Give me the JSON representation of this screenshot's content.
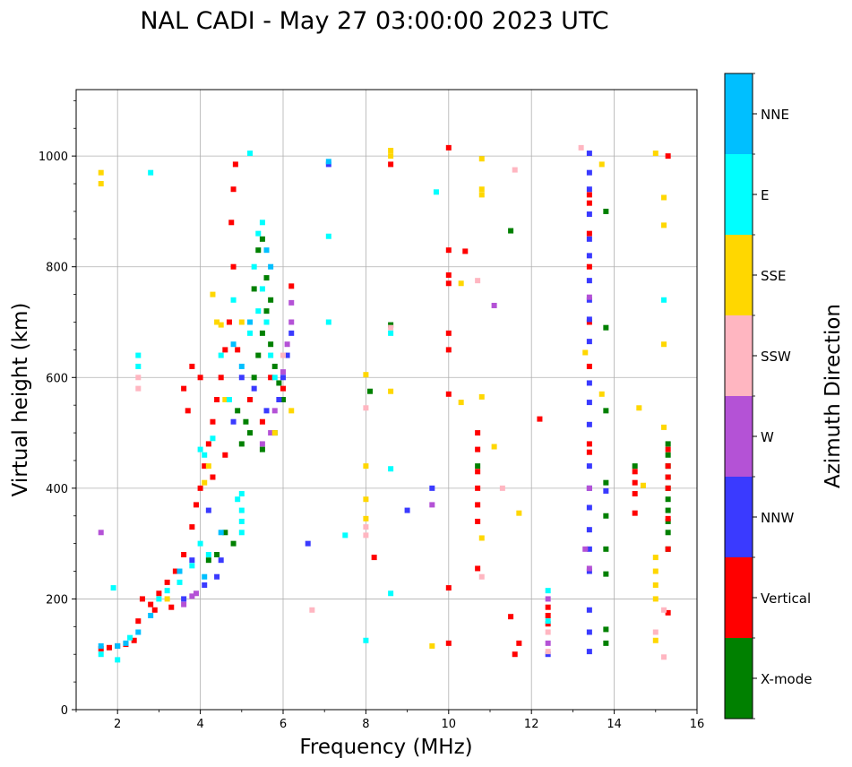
{
  "chart_data": {
    "type": "scatter",
    "title": "NAL CADI - May 27 03:00:00 2023 UTC",
    "xlabel": "Frequency (MHz)",
    "ylabel": "Virtual height (km)",
    "xlim": [
      1,
      16
    ],
    "ylim": [
      0,
      1120
    ],
    "xticks": [
      2,
      4,
      6,
      8,
      10,
      12,
      14,
      16
    ],
    "yticks": [
      0,
      200,
      400,
      600,
      800,
      1000
    ],
    "grid": true,
    "colorbar": {
      "label": "Azimuth Direction",
      "categories": [
        "X-mode",
        "Vertical",
        "NNW",
        "W",
        "SSW",
        "SSE",
        "E",
        "NNE"
      ],
      "colors": [
        "#008000",
        "#ff0000",
        "#3a3aff",
        "#b452d6",
        "#ffb6c1",
        "#ffd700",
        "#00ffff",
        "#00bfff"
      ]
    },
    "series": [
      {
        "name": "X-mode",
        "points": [
          [
            5.0,
            480
          ],
          [
            5.1,
            520
          ],
          [
            5.2,
            560
          ],
          [
            5.3,
            600
          ],
          [
            5.4,
            640
          ],
          [
            5.5,
            680
          ],
          [
            5.6,
            720
          ],
          [
            5.3,
            760
          ],
          [
            5.6,
            780
          ],
          [
            5.7,
            660
          ],
          [
            5.8,
            620
          ],
          [
            5.9,
            590
          ],
          [
            4.9,
            540
          ],
          [
            5.2,
            500
          ],
          [
            5.5,
            470
          ],
          [
            5.8,
            500
          ],
          [
            6.0,
            560
          ],
          [
            5.4,
            830
          ],
          [
            5.5,
            850
          ],
          [
            5.7,
            740
          ],
          [
            4.8,
            300
          ],
          [
            4.4,
            280
          ],
          [
            4.6,
            320
          ],
          [
            4.2,
            270
          ],
          [
            15.3,
            480
          ],
          [
            15.3,
            460
          ],
          [
            15.3,
            440
          ],
          [
            15.3,
            420
          ],
          [
            15.3,
            400
          ],
          [
            15.3,
            380
          ],
          [
            15.3,
            360
          ],
          [
            15.3,
            340
          ],
          [
            15.3,
            320
          ],
          [
            15.3,
            290
          ],
          [
            10.7,
            440
          ],
          [
            13.8,
            900
          ],
          [
            13.8,
            690
          ],
          [
            13.8,
            540
          ],
          [
            13.8,
            410
          ],
          [
            13.8,
            350
          ],
          [
            13.8,
            290
          ],
          [
            13.8,
            245
          ],
          [
            13.8,
            145
          ],
          [
            13.8,
            120
          ],
          [
            11.5,
            865
          ],
          [
            8.1,
            575
          ],
          [
            8.6,
            695
          ],
          [
            14.5,
            440
          ]
        ]
      },
      {
        "name": "Vertical",
        "points": [
          [
            1.6,
            110
          ],
          [
            1.8,
            112
          ],
          [
            2.0,
            115
          ],
          [
            2.2,
            118
          ],
          [
            2.4,
            125
          ],
          [
            2.5,
            160
          ],
          [
            2.6,
            200
          ],
          [
            2.8,
            190
          ],
          [
            3.0,
            210
          ],
          [
            3.2,
            230
          ],
          [
            3.4,
            250
          ],
          [
            3.6,
            280
          ],
          [
            3.8,
            330
          ],
          [
            3.9,
            370
          ],
          [
            4.0,
            400
          ],
          [
            4.1,
            440
          ],
          [
            4.2,
            480
          ],
          [
            4.3,
            520
          ],
          [
            4.4,
            560
          ],
          [
            4.5,
            600
          ],
          [
            4.6,
            650
          ],
          [
            4.7,
            700
          ],
          [
            4.8,
            800
          ],
          [
            4.75,
            880
          ],
          [
            4.8,
            940
          ],
          [
            4.85,
            985
          ],
          [
            4.0,
            600
          ],
          [
            3.8,
            620
          ],
          [
            3.7,
            540
          ],
          [
            3.6,
            580
          ],
          [
            4.3,
            420
          ],
          [
            4.6,
            460
          ],
          [
            4.9,
            650
          ],
          [
            5.2,
            560
          ],
          [
            5.5,
            520
          ],
          [
            5.7,
            600
          ],
          [
            6.0,
            580
          ],
          [
            6.2,
            765
          ],
          [
            2.9,
            180
          ],
          [
            3.3,
            185
          ],
          [
            10.7,
            500
          ],
          [
            10.7,
            470
          ],
          [
            10.7,
            430
          ],
          [
            10.7,
            400
          ],
          [
            10.7,
            370
          ],
          [
            10.7,
            340
          ],
          [
            10.0,
            1015
          ],
          [
            10.0,
            830
          ],
          [
            10.0,
            785
          ],
          [
            10.0,
            770
          ],
          [
            10.0,
            680
          ],
          [
            10.0,
            650
          ],
          [
            10.0,
            570
          ],
          [
            10.0,
            220
          ],
          [
            10.0,
            120
          ],
          [
            10.4,
            828
          ],
          [
            10.7,
            255
          ],
          [
            12.4,
            185
          ],
          [
            12.4,
            170
          ],
          [
            12.4,
            155
          ],
          [
            12.2,
            525
          ],
          [
            11.7,
            120
          ],
          [
            11.6,
            100
          ],
          [
            11.5,
            168
          ],
          [
            13.4,
            930
          ],
          [
            13.4,
            915
          ],
          [
            13.4,
            860
          ],
          [
            13.4,
            800
          ],
          [
            13.4,
            700
          ],
          [
            13.4,
            620
          ],
          [
            13.4,
            480
          ],
          [
            13.4,
            465
          ],
          [
            14.5,
            430
          ],
          [
            14.5,
            410
          ],
          [
            14.5,
            390
          ],
          [
            14.5,
            355
          ],
          [
            15.3,
            1000
          ],
          [
            15.3,
            175
          ],
          [
            15.3,
            470
          ],
          [
            15.3,
            440
          ],
          [
            15.3,
            420
          ],
          [
            15.3,
            400
          ],
          [
            15.3,
            345
          ],
          [
            15.3,
            290
          ],
          [
            8.6,
            985
          ],
          [
            8.2,
            275
          ]
        ]
      },
      {
        "name": "NNW",
        "points": [
          [
            4.5,
            270
          ],
          [
            4.4,
            240
          ],
          [
            4.1,
            225
          ],
          [
            3.6,
            200
          ],
          [
            3.8,
            270
          ],
          [
            4.2,
            360
          ],
          [
            4.8,
            520
          ],
          [
            5.0,
            600
          ],
          [
            5.3,
            580
          ],
          [
            5.6,
            540
          ],
          [
            5.9,
            560
          ],
          [
            6.0,
            600
          ],
          [
            6.1,
            640
          ],
          [
            6.2,
            680
          ],
          [
            6.6,
            300
          ],
          [
            9.0,
            360
          ],
          [
            9.6,
            400
          ],
          [
            13.4,
            1005
          ],
          [
            13.4,
            970
          ],
          [
            13.4,
            940
          ],
          [
            13.4,
            895
          ],
          [
            13.4,
            850
          ],
          [
            13.4,
            820
          ],
          [
            13.4,
            775
          ],
          [
            13.4,
            740
          ],
          [
            13.4,
            705
          ],
          [
            13.4,
            665
          ],
          [
            13.4,
            590
          ],
          [
            13.4,
            555
          ],
          [
            13.4,
            515
          ],
          [
            13.4,
            440
          ],
          [
            13.4,
            400
          ],
          [
            13.4,
            365
          ],
          [
            13.4,
            325
          ],
          [
            13.4,
            290
          ],
          [
            13.4,
            250
          ],
          [
            13.4,
            180
          ],
          [
            13.4,
            140
          ],
          [
            13.4,
            105
          ],
          [
            12.4,
            100
          ],
          [
            13.8,
            395
          ],
          [
            7.1,
            985
          ]
        ]
      },
      {
        "name": "W",
        "points": [
          [
            3.6,
            190
          ],
          [
            3.8,
            205
          ],
          [
            3.9,
            210
          ],
          [
            5.5,
            480
          ],
          [
            5.7,
            500
          ],
          [
            5.8,
            540
          ],
          [
            6.0,
            610
          ],
          [
            6.1,
            660
          ],
          [
            6.2,
            700
          ],
          [
            6.2,
            735
          ],
          [
            1.6,
            320
          ],
          [
            12.4,
            200
          ],
          [
            12.4,
            120
          ],
          [
            13.3,
            290
          ],
          [
            13.4,
            400
          ],
          [
            13.4,
            745
          ],
          [
            13.4,
            255
          ],
          [
            11.1,
            730
          ],
          [
            9.6,
            370
          ]
        ]
      },
      {
        "name": "SSW",
        "points": [
          [
            2.5,
            580
          ],
          [
            2.5,
            600
          ],
          [
            6.0,
            640
          ],
          [
            8.0,
            545
          ],
          [
            8.0,
            330
          ],
          [
            8.0,
            315
          ],
          [
            8.6,
            690
          ],
          [
            10.7,
            775
          ],
          [
            10.8,
            240
          ],
          [
            11.3,
            400
          ],
          [
            11.6,
            975
          ],
          [
            15.0,
            140
          ],
          [
            15.2,
            180
          ],
          [
            15.2,
            95
          ],
          [
            13.2,
            1015
          ],
          [
            12.4,
            140
          ],
          [
            12.4,
            105
          ],
          [
            6.7,
            180
          ]
        ]
      },
      {
        "name": "SSE",
        "points": [
          [
            1.6,
            970
          ],
          [
            1.6,
            950
          ],
          [
            4.3,
            750
          ],
          [
            4.4,
            700
          ],
          [
            4.2,
            440
          ],
          [
            4.1,
            410
          ],
          [
            3.2,
            200
          ],
          [
            5.0,
            700
          ],
          [
            5.8,
            500
          ],
          [
            6.2,
            540
          ],
          [
            8.0,
            605
          ],
          [
            8.0,
            440
          ],
          [
            8.0,
            380
          ],
          [
            8.0,
            345
          ],
          [
            8.6,
            1010
          ],
          [
            8.6,
            1000
          ],
          [
            10.3,
            770
          ],
          [
            10.3,
            555
          ],
          [
            10.8,
            995
          ],
          [
            10.8,
            940
          ],
          [
            10.8,
            930
          ],
          [
            10.8,
            565
          ],
          [
            10.8,
            310
          ],
          [
            11.1,
            475
          ],
          [
            11.7,
            355
          ],
          [
            9.6,
            115
          ],
          [
            8.6,
            575
          ],
          [
            13.3,
            645
          ],
          [
            13.7,
            985
          ],
          [
            13.7,
            570
          ],
          [
            14.6,
            545
          ],
          [
            14.7,
            405
          ],
          [
            15.0,
            1005
          ],
          [
            15.2,
            925
          ],
          [
            15.2,
            875
          ],
          [
            15.2,
            660
          ],
          [
            15.2,
            510
          ],
          [
            15.0,
            275
          ],
          [
            15.0,
            250
          ],
          [
            15.0,
            225
          ],
          [
            15.0,
            200
          ],
          [
            15.0,
            125
          ],
          [
            4.5,
            695
          ],
          [
            4.6,
            560
          ]
        ]
      },
      {
        "name": "E",
        "points": [
          [
            1.6,
            100
          ],
          [
            1.9,
            220
          ],
          [
            2.0,
            90
          ],
          [
            2.3,
            130
          ],
          [
            2.5,
            640
          ],
          [
            2.5,
            620
          ],
          [
            3.0,
            200
          ],
          [
            3.2,
            215
          ],
          [
            3.5,
            230
          ],
          [
            3.8,
            260
          ],
          [
            4.0,
            300
          ],
          [
            4.2,
            280
          ],
          [
            4.0,
            470
          ],
          [
            4.1,
            460
          ],
          [
            4.3,
            490
          ],
          [
            4.5,
            640
          ],
          [
            4.7,
            560
          ],
          [
            4.9,
            380
          ],
          [
            5.0,
            320
          ],
          [
            5.0,
            340
          ],
          [
            5.0,
            360
          ],
          [
            5.0,
            390
          ],
          [
            5.2,
            680
          ],
          [
            5.4,
            720
          ],
          [
            5.5,
            760
          ],
          [
            5.6,
            700
          ],
          [
            5.7,
            640
          ],
          [
            5.3,
            800
          ],
          [
            5.4,
            860
          ],
          [
            5.5,
            880
          ],
          [
            5.2,
            1005
          ],
          [
            5.8,
            600
          ],
          [
            4.8,
            740
          ],
          [
            7.1,
            855
          ],
          [
            7.1,
            700
          ],
          [
            7.5,
            315
          ],
          [
            8.0,
            125
          ],
          [
            8.6,
            680
          ],
          [
            8.6,
            435
          ],
          [
            8.6,
            210
          ],
          [
            9.7,
            935
          ],
          [
            12.4,
            215
          ],
          [
            12.4,
            160
          ],
          [
            15.2,
            740
          ],
          [
            2.8,
            970
          ]
        ]
      },
      {
        "name": "NNE",
        "points": [
          [
            1.6,
            115
          ],
          [
            2.0,
            115
          ],
          [
            2.2,
            120
          ],
          [
            2.5,
            140
          ],
          [
            2.8,
            170
          ],
          [
            4.5,
            320
          ],
          [
            4.8,
            660
          ],
          [
            5.0,
            620
          ],
          [
            5.2,
            700
          ],
          [
            5.6,
            830
          ],
          [
            5.7,
            800
          ],
          [
            7.1,
            990
          ],
          [
            4.1,
            240
          ],
          [
            3.5,
            250
          ]
        ]
      }
    ]
  }
}
